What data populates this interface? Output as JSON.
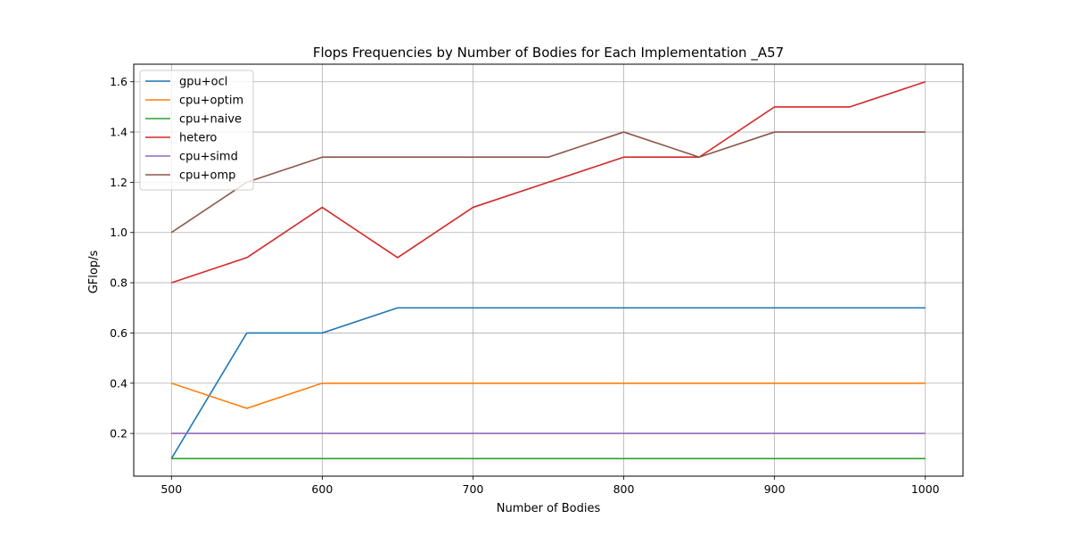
{
  "chart_data": {
    "type": "line",
    "title": "Flops Frequencies by Number of Bodies for Each Implementation _A57",
    "xlabel": "Number of Bodies",
    "ylabel": "GFlop/s",
    "x": [
      500,
      550,
      600,
      650,
      700,
      750,
      800,
      850,
      900,
      950,
      1000
    ],
    "xlim": [
      475,
      1025
    ],
    "ylim": [
      0.03,
      1.67
    ],
    "xticks": [
      500,
      600,
      700,
      800,
      900,
      1000
    ],
    "yticks": [
      0.2,
      0.4,
      0.6,
      0.8,
      1.0,
      1.2,
      1.4,
      1.6
    ],
    "ytick_labels": [
      "0.2",
      "0.4",
      "0.6",
      "0.8",
      "1.0",
      "1.2",
      "1.4",
      "1.6"
    ],
    "grid": true,
    "legend_position": "top-left",
    "series": [
      {
        "name": "gpu+ocl",
        "color": "#1f77b4",
        "values": [
          0.1,
          0.6,
          0.6,
          0.7,
          0.7,
          0.7,
          0.7,
          0.7,
          0.7,
          0.7,
          0.7
        ]
      },
      {
        "name": "cpu+optim",
        "color": "#ff7f0e",
        "values": [
          0.4,
          0.3,
          0.4,
          0.4,
          0.4,
          0.4,
          0.4,
          0.4,
          0.4,
          0.4,
          0.4
        ]
      },
      {
        "name": "cpu+naive",
        "color": "#2ca02c",
        "values": [
          0.1,
          0.1,
          0.1,
          0.1,
          0.1,
          0.1,
          0.1,
          0.1,
          0.1,
          0.1,
          0.1
        ]
      },
      {
        "name": "hetero",
        "color": "#d62728",
        "values": [
          0.8,
          0.9,
          1.1,
          0.9,
          1.1,
          1.2,
          1.3,
          1.3,
          1.5,
          1.5,
          1.6
        ]
      },
      {
        "name": "cpu+simd",
        "color": "#9467bd",
        "values": [
          0.2,
          0.2,
          0.2,
          0.2,
          0.2,
          0.2,
          0.2,
          0.2,
          0.2,
          0.2,
          0.2
        ]
      },
      {
        "name": "cpu+omp",
        "color": "#8c564b",
        "values": [
          1.0,
          1.2,
          1.3,
          1.3,
          1.3,
          1.3,
          1.4,
          1.3,
          1.4,
          1.4,
          1.4
        ]
      }
    ]
  }
}
